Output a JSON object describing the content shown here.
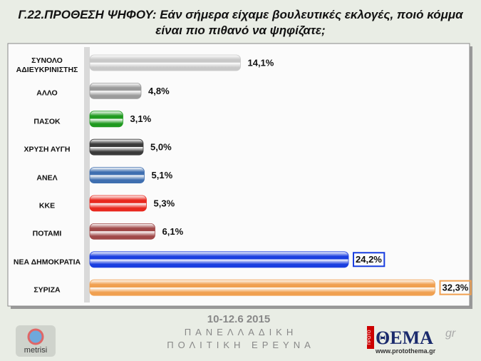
{
  "chart_data": {
    "type": "bar",
    "orientation": "horizontal",
    "title": "Γ.22.ΠΡΟΘΕΣΗ ΨΗΦΟΥ: Εάν σήμερα είχαμε βουλευτικές εκλογές, ποιό κόμμα είναι πιο πιθανό να ψηφίζατε;",
    "categories": [
      "ΣΥΝΟΛΟ ΑΔΙΕΥΚΡΙΝΙΣΤΗΣ",
      "ΑΛΛΟ",
      "ΠΑΣΟΚ",
      "ΧΡΥΣΗ ΑΥΓΗ",
      "ΑΝΕΛ",
      "ΚΚΕ",
      "ΠΟΤΑΜΙ",
      "ΝΕΑ ΔΗΜΟΚΡΑΤΙΑ",
      "ΣΥΡΙΖΑ"
    ],
    "values": [
      14.1,
      4.8,
      3.1,
      5.0,
      5.1,
      5.3,
      6.1,
      24.2,
      32.3
    ],
    "value_labels": [
      "14,1%",
      "4,8%",
      "3,1%",
      "5,0%",
      "5,1%",
      "5,3%",
      "6,1%",
      "24,2%",
      "32,3%"
    ],
    "colors": [
      "#c8c8c8",
      "#9a9a9a",
      "#1f9a1f",
      "#3a3a3a",
      "#3f6fb0",
      "#e8281e",
      "#a04848",
      "#1a3fe0",
      "#f0a050"
    ]
  },
  "footer": {
    "date": "10-12.6 2015",
    "line1": "ΠΑΝΕΛΛΑΔΙΚΗ",
    "line2": "ΠΟΛΙΤΙΚΗ ΕΡΕΥΝΑ",
    "left_logo": "metrisi",
    "right_logo_tag": "ΠΡΩΤΟ",
    "right_logo": "ΘΕΜΑ",
    "right_logo_suffix": "gr",
    "right_url": "www.protothema.gr"
  }
}
